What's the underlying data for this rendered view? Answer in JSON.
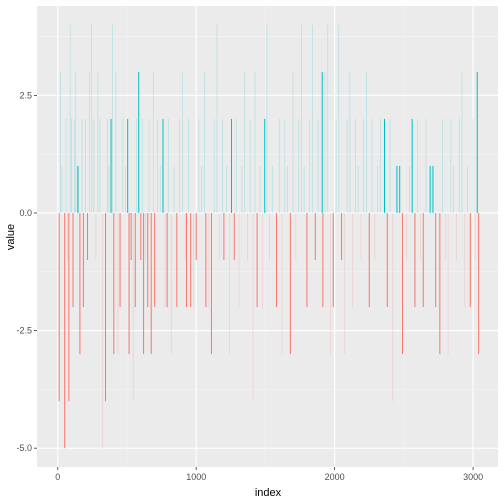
{
  "chart_data": {
    "type": "bar",
    "xlabel": "index",
    "ylabel": "value",
    "xlim": [
      -150,
      3180
    ],
    "ylim": [
      -5.4,
      4.4
    ],
    "x_ticks": [
      0,
      1000,
      2000,
      3000
    ],
    "x_tick_labels": [
      "0",
      "1000",
      "2000",
      "3000"
    ],
    "y_ticks": [
      -5.0,
      -2.5,
      0.0,
      2.5
    ],
    "y_tick_labels": [
      "-5.0",
      "-2.5",
      "0.0",
      "2.5"
    ],
    "grid": true,
    "legend": "none",
    "colors": {
      "panel_bg": "#ebebeb",
      "grid_major": "#ffffff",
      "positive": "#00bfc4",
      "negative": "#f8766d",
      "tick_text": "#4d4d4d"
    },
    "series": [
      {
        "values_note_free": true,
        "points": [
          {
            "x": 10,
            "y": -4
          },
          {
            "x": 50,
            "y": -5
          },
          {
            "x": 80,
            "y": -4
          },
          {
            "x": 110,
            "y": -2
          },
          {
            "x": 145,
            "y": 1
          },
          {
            "x": 160,
            "y": -3
          },
          {
            "x": 185,
            "y": -2
          },
          {
            "x": 215,
            "y": -1
          },
          {
            "x": 345,
            "y": -4
          },
          {
            "x": 385,
            "y": 2
          },
          {
            "x": 405,
            "y": -3
          },
          {
            "x": 450,
            "y": -2
          },
          {
            "x": 505,
            "y": 2
          },
          {
            "x": 515,
            "y": -3
          },
          {
            "x": 530,
            "y": -1
          },
          {
            "x": 560,
            "y": -2
          },
          {
            "x": 585,
            "y": 3
          },
          {
            "x": 600,
            "y": -1
          },
          {
            "x": 620,
            "y": -3
          },
          {
            "x": 650,
            "y": -2
          },
          {
            "x": 675,
            "y": -3
          },
          {
            "x": 700,
            "y": -2
          },
          {
            "x": 760,
            "y": 2
          },
          {
            "x": 790,
            "y": -2
          },
          {
            "x": 860,
            "y": -2
          },
          {
            "x": 930,
            "y": -2
          },
          {
            "x": 960,
            "y": -2
          },
          {
            "x": 1000,
            "y": -1
          },
          {
            "x": 1070,
            "y": -2
          },
          {
            "x": 1110,
            "y": -3
          },
          {
            "x": 1200,
            "y": -1
          },
          {
            "x": 1255,
            "y": 2
          },
          {
            "x": 1275,
            "y": -1
          },
          {
            "x": 1440,
            "y": -2
          },
          {
            "x": 1495,
            "y": 2
          },
          {
            "x": 1580,
            "y": -2
          },
          {
            "x": 1680,
            "y": -3
          },
          {
            "x": 1800,
            "y": -2
          },
          {
            "x": 1860,
            "y": -1
          },
          {
            "x": 1910,
            "y": 3
          },
          {
            "x": 1915,
            "y": -2
          },
          {
            "x": 1990,
            "y": -2
          },
          {
            "x": 2050,
            "y": -1
          },
          {
            "x": 2250,
            "y": -2
          },
          {
            "x": 2360,
            "y": 2
          },
          {
            "x": 2380,
            "y": -2
          },
          {
            "x": 2450,
            "y": 1
          },
          {
            "x": 2470,
            "y": 1
          },
          {
            "x": 2490,
            "y": -3
          },
          {
            "x": 2560,
            "y": 2
          },
          {
            "x": 2580,
            "y": -2
          },
          {
            "x": 2640,
            "y": -2
          },
          {
            "x": 2690,
            "y": 1
          },
          {
            "x": 2710,
            "y": 1
          },
          {
            "x": 2730,
            "y": -2
          },
          {
            "x": 2760,
            "y": -3
          },
          {
            "x": 2980,
            "y": -2
          },
          {
            "x": 3030,
            "y": 3
          },
          {
            "x": 3040,
            "y": -3
          }
        ],
        "faint_points": [
          {
            "x": 20,
            "y": 3
          },
          {
            "x": 30,
            "y": 1
          },
          {
            "x": 60,
            "y": 2
          },
          {
            "x": 70,
            "y": -1
          },
          {
            "x": 90,
            "y": 4
          },
          {
            "x": 100,
            "y": 2
          },
          {
            "x": 120,
            "y": 2
          },
          {
            "x": 130,
            "y": 3
          },
          {
            "x": 150,
            "y": 1
          },
          {
            "x": 175,
            "y": 2
          },
          {
            "x": 200,
            "y": 2
          },
          {
            "x": 230,
            "y": 3
          },
          {
            "x": 245,
            "y": 4
          },
          {
            "x": 260,
            "y": 2
          },
          {
            "x": 275,
            "y": -1
          },
          {
            "x": 290,
            "y": 3
          },
          {
            "x": 305,
            "y": 2
          },
          {
            "x": 325,
            "y": -5
          },
          {
            "x": 360,
            "y": 2
          },
          {
            "x": 370,
            "y": 1
          },
          {
            "x": 395,
            "y": 4
          },
          {
            "x": 420,
            "y": 3
          },
          {
            "x": 435,
            "y": -3
          },
          {
            "x": 470,
            "y": 2
          },
          {
            "x": 490,
            "y": 1
          },
          {
            "x": 545,
            "y": -4
          },
          {
            "x": 570,
            "y": 2
          },
          {
            "x": 610,
            "y": 2
          },
          {
            "x": 635,
            "y": -1
          },
          {
            "x": 660,
            "y": 2
          },
          {
            "x": 690,
            "y": 3
          },
          {
            "x": 720,
            "y": 2
          },
          {
            "x": 740,
            "y": 1
          },
          {
            "x": 775,
            "y": -2
          },
          {
            "x": 800,
            "y": 2
          },
          {
            "x": 820,
            "y": -3
          },
          {
            "x": 840,
            "y": 1
          },
          {
            "x": 880,
            "y": 2
          },
          {
            "x": 900,
            "y": 3
          },
          {
            "x": 920,
            "y": -1
          },
          {
            "x": 945,
            "y": 2
          },
          {
            "x": 980,
            "y": -2
          },
          {
            "x": 1020,
            "y": 2
          },
          {
            "x": 1040,
            "y": 1
          },
          {
            "x": 1060,
            "y": 3
          },
          {
            "x": 1090,
            "y": -2
          },
          {
            "x": 1130,
            "y": 2
          },
          {
            "x": 1150,
            "y": 4
          },
          {
            "x": 1170,
            "y": -1
          },
          {
            "x": 1190,
            "y": 2
          },
          {
            "x": 1220,
            "y": 1
          },
          {
            "x": 1240,
            "y": -3
          },
          {
            "x": 1290,
            "y": 2
          },
          {
            "x": 1310,
            "y": -2
          },
          {
            "x": 1330,
            "y": 1
          },
          {
            "x": 1350,
            "y": 3
          },
          {
            "x": 1370,
            "y": -1
          },
          {
            "x": 1390,
            "y": 2
          },
          {
            "x": 1410,
            "y": -4
          },
          {
            "x": 1425,
            "y": 3
          },
          {
            "x": 1460,
            "y": 1
          },
          {
            "x": 1480,
            "y": -2
          },
          {
            "x": 1510,
            "y": 4
          },
          {
            "x": 1530,
            "y": -1
          },
          {
            "x": 1550,
            "y": 1
          },
          {
            "x": 1600,
            "y": 2
          },
          {
            "x": 1620,
            "y": -3
          },
          {
            "x": 1640,
            "y": 2
          },
          {
            "x": 1660,
            "y": 1
          },
          {
            "x": 1700,
            "y": 3
          },
          {
            "x": 1720,
            "y": -1
          },
          {
            "x": 1740,
            "y": 2
          },
          {
            "x": 1760,
            "y": 4
          },
          {
            "x": 1780,
            "y": 1
          },
          {
            "x": 1820,
            "y": 2
          },
          {
            "x": 1840,
            "y": 4
          },
          {
            "x": 1880,
            "y": 2
          },
          {
            "x": 1930,
            "y": 3
          },
          {
            "x": 1950,
            "y": 4
          },
          {
            "x": 1970,
            "y": -3
          },
          {
            "x": 2010,
            "y": 2
          },
          {
            "x": 2030,
            "y": 4
          },
          {
            "x": 2070,
            "y": -3
          },
          {
            "x": 2090,
            "y": 2
          },
          {
            "x": 2110,
            "y": 3
          },
          {
            "x": 2130,
            "y": -2
          },
          {
            "x": 2150,
            "y": 2
          },
          {
            "x": 2170,
            "y": 1
          },
          {
            "x": 2190,
            "y": -1
          },
          {
            "x": 2210,
            "y": 2
          },
          {
            "x": 2230,
            "y": 3
          },
          {
            "x": 2270,
            "y": 2
          },
          {
            "x": 2290,
            "y": -1
          },
          {
            "x": 2310,
            "y": 1
          },
          {
            "x": 2330,
            "y": 2
          },
          {
            "x": 2400,
            "y": 2
          },
          {
            "x": 2420,
            "y": -4
          },
          {
            "x": 2520,
            "y": -1
          },
          {
            "x": 2540,
            "y": 1
          },
          {
            "x": 2600,
            "y": 2
          },
          {
            "x": 2620,
            "y": -1
          },
          {
            "x": 2660,
            "y": 2
          },
          {
            "x": 2780,
            "y": 2
          },
          {
            "x": 2800,
            "y": -1
          },
          {
            "x": 2820,
            "y": -3
          },
          {
            "x": 2840,
            "y": 2
          },
          {
            "x": 2860,
            "y": 1
          },
          {
            "x": 2880,
            "y": -1
          },
          {
            "x": 2900,
            "y": 2
          },
          {
            "x": 2920,
            "y": 3
          },
          {
            "x": 2940,
            "y": -2
          },
          {
            "x": 2960,
            "y": 1
          },
          {
            "x": 3000,
            "y": 2
          },
          {
            "x": 3015,
            "y": -1
          }
        ]
      }
    ]
  }
}
